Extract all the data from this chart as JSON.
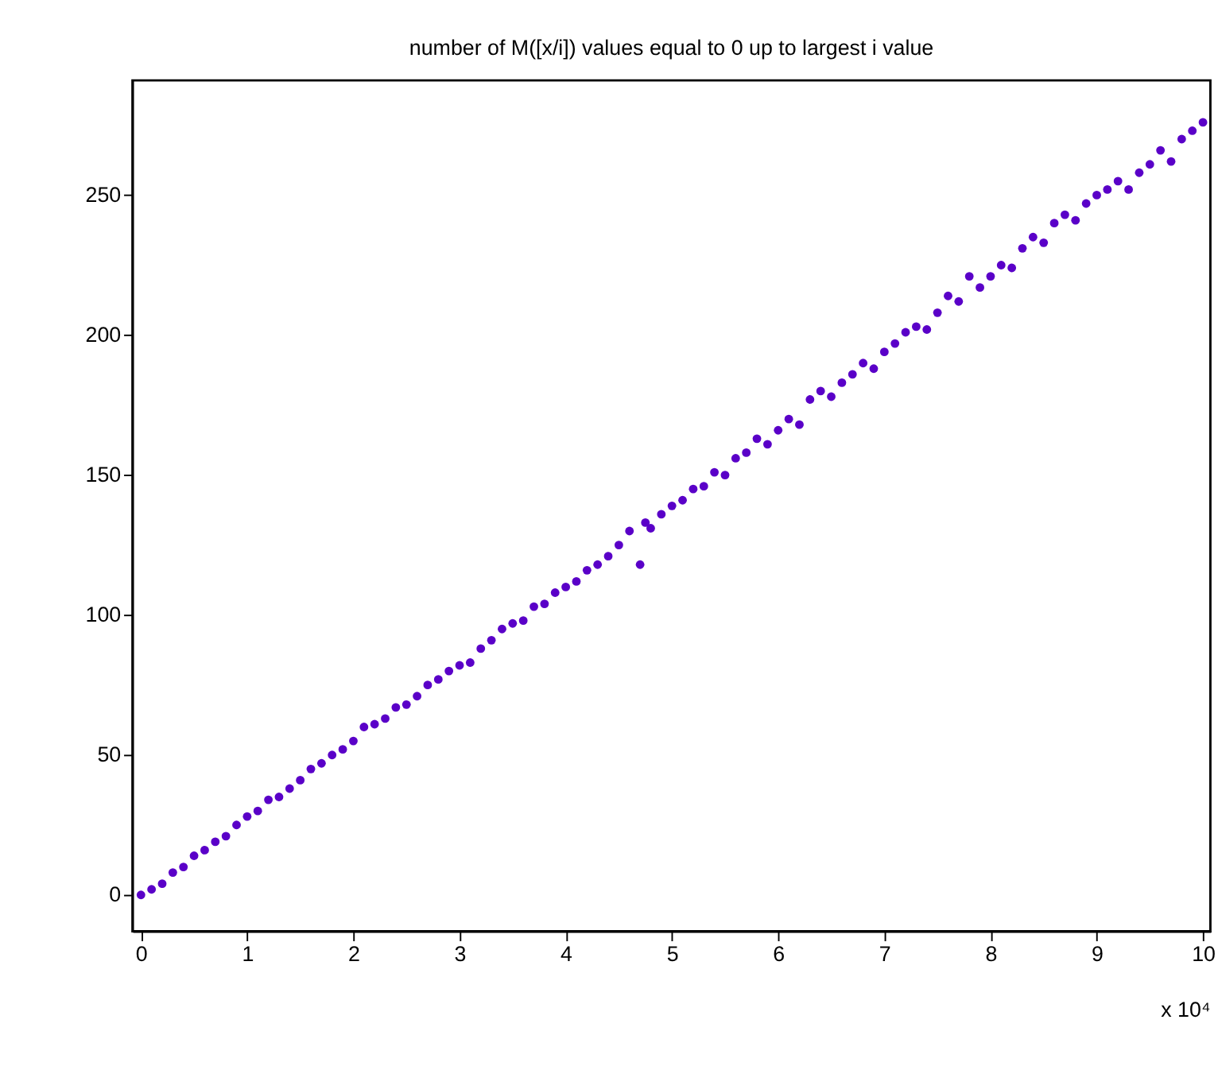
{
  "chart_data": {
    "type": "scatter",
    "title": "number of M([x/i]) values equal to 0 up to largest i value",
    "x": [
      0,
      0.1,
      0.2,
      0.3,
      0.4,
      0.5,
      0.6,
      0.7,
      0.8,
      0.9,
      1.0,
      1.1,
      1.2,
      1.3,
      1.4,
      1.5,
      1.6,
      1.7,
      1.8,
      1.9,
      2.0,
      2.1,
      2.2,
      2.3,
      2.4,
      2.5,
      2.6,
      2.7,
      2.8,
      2.9,
      3.0,
      3.1,
      3.2,
      3.3,
      3.4,
      3.5,
      3.6,
      3.7,
      3.8,
      3.9,
      4.0,
      4.1,
      4.2,
      4.3,
      4.4,
      4.5,
      4.6,
      4.7,
      4.75,
      4.8,
      4.9,
      5.0,
      5.1,
      5.2,
      5.3,
      5.4,
      5.5,
      5.6,
      5.7,
      5.8,
      5.9,
      6.0,
      6.1,
      6.2,
      6.3,
      6.4,
      6.5,
      6.6,
      6.7,
      6.8,
      6.9,
      7.0,
      7.1,
      7.2,
      7.3,
      7.4,
      7.5,
      7.6,
      7.7,
      7.8,
      7.9,
      8.0,
      8.1,
      8.2,
      8.3,
      8.4,
      8.5,
      8.6,
      8.7,
      8.8,
      8.9,
      9.0,
      9.1,
      9.2,
      9.3,
      9.4,
      9.5,
      9.6,
      9.7,
      9.8,
      9.9,
      10.0
    ],
    "series": [
      {
        "color": "#5a00c8",
        "values": [
          0,
          2,
          4,
          8,
          10,
          14,
          16,
          19,
          21,
          25,
          28,
          30,
          34,
          35,
          38,
          41,
          45,
          47,
          50,
          52,
          55,
          60,
          61,
          63,
          67,
          68,
          71,
          75,
          77,
          80,
          82,
          83,
          88,
          91,
          95,
          97,
          98,
          103,
          104,
          108,
          110,
          112,
          116,
          118,
          121,
          125,
          130,
          118,
          133,
          131,
          136,
          139,
          141,
          145,
          146,
          151,
          150,
          156,
          158,
          163,
          161,
          166,
          170,
          168,
          177,
          180,
          178,
          183,
          186,
          190,
          188,
          194,
          197,
          201,
          203,
          202,
          208,
          214,
          212,
          221,
          217,
          221,
          225,
          224,
          231,
          235,
          233,
          240,
          243,
          241,
          247,
          250,
          252,
          255,
          252,
          258,
          261,
          266,
          262,
          270,
          273,
          276
        ]
      }
    ],
    "xlim": [
      -0.08,
      10.07
    ],
    "xticks": [
      0,
      1,
      2,
      3,
      4,
      5,
      6,
      7,
      8,
      9,
      10
    ],
    "ylim": [
      -13,
      291
    ],
    "yticks": [
      0,
      50,
      100,
      150,
      200,
      250
    ],
    "annotations": [
      "x 10⁴"
    ],
    "marker": "circle",
    "grid": false
  }
}
